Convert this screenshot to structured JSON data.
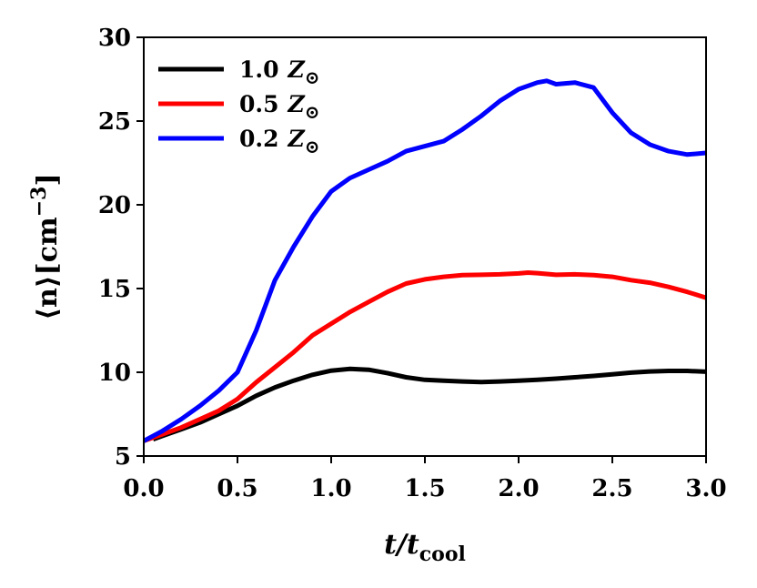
{
  "chart_data": {
    "type": "line",
    "title": "",
    "xlabel": {
      "main": "t/t",
      "sub": "cool"
    },
    "ylabel": {
      "main": "⟨n⟩[cm",
      "sup": "−3",
      "close": "]"
    },
    "xlim": [
      0.0,
      3.0
    ],
    "ylim": [
      5,
      30
    ],
    "xticks": [
      "0.0",
      "0.5",
      "1.0",
      "1.5",
      "2.0",
      "2.5",
      "3.0"
    ],
    "yticks": [
      "5",
      "10",
      "15",
      "20",
      "25",
      "30"
    ],
    "legend_position": "top-left",
    "series": [
      {
        "name": "1.0 Z⊙",
        "label_num": "1.0",
        "label_sym": "Z",
        "label_sub": "⊙",
        "color": "#000000",
        "x": [
          0.05,
          0.1,
          0.2,
          0.3,
          0.4,
          0.5,
          0.6,
          0.7,
          0.8,
          0.9,
          1.0,
          1.1,
          1.2,
          1.3,
          1.4,
          1.5,
          1.6,
          1.7,
          1.8,
          1.9,
          2.0,
          2.1,
          2.2,
          2.3,
          2.4,
          2.5,
          2.6,
          2.7,
          2.8,
          2.9,
          3.0
        ],
        "values": [
          6.0,
          6.2,
          6.6,
          7.0,
          7.5,
          8.0,
          8.6,
          9.1,
          9.5,
          9.85,
          10.1,
          10.2,
          10.15,
          9.95,
          9.7,
          9.55,
          9.5,
          9.45,
          9.42,
          9.45,
          9.5,
          9.55,
          9.62,
          9.7,
          9.78,
          9.88,
          9.98,
          10.05,
          10.08,
          10.08,
          10.03
        ]
      },
      {
        "name": "0.5 Z⊙",
        "label_num": "0.5",
        "label_sym": "Z",
        "label_sub": "⊙",
        "color": "#ff0000",
        "x": [
          0.0,
          0.1,
          0.2,
          0.3,
          0.4,
          0.5,
          0.6,
          0.7,
          0.8,
          0.9,
          1.0,
          1.1,
          1.2,
          1.3,
          1.4,
          1.5,
          1.6,
          1.7,
          1.8,
          1.9,
          2.0,
          2.05,
          2.1,
          2.2,
          2.3,
          2.4,
          2.5,
          2.6,
          2.7,
          2.8,
          2.9,
          3.0
        ],
        "values": [
          5.9,
          6.3,
          6.7,
          7.2,
          7.7,
          8.4,
          9.4,
          10.3,
          11.2,
          12.2,
          12.9,
          13.6,
          14.2,
          14.8,
          15.3,
          15.55,
          15.7,
          15.8,
          15.82,
          15.85,
          15.9,
          15.95,
          15.92,
          15.82,
          15.85,
          15.8,
          15.7,
          15.5,
          15.35,
          15.1,
          14.8,
          14.45
        ]
      },
      {
        "name": "0.2 Z⊙",
        "label_num": "0.2",
        "label_sym": "Z",
        "label_sub": "⊙",
        "color": "#0000ff",
        "x": [
          0.0,
          0.1,
          0.2,
          0.3,
          0.4,
          0.5,
          0.6,
          0.7,
          0.8,
          0.9,
          1.0,
          1.1,
          1.2,
          1.3,
          1.4,
          1.5,
          1.6,
          1.7,
          1.8,
          1.9,
          2.0,
          2.1,
          2.15,
          2.2,
          2.3,
          2.4,
          2.5,
          2.6,
          2.7,
          2.8,
          2.9,
          3.0
        ],
        "values": [
          5.9,
          6.5,
          7.2,
          8.0,
          8.9,
          10.0,
          12.5,
          15.5,
          17.5,
          19.3,
          20.8,
          21.6,
          22.1,
          22.6,
          23.2,
          23.5,
          23.8,
          24.5,
          25.3,
          26.2,
          26.9,
          27.3,
          27.4,
          27.2,
          27.3,
          27.0,
          25.5,
          24.3,
          23.6,
          23.2,
          23.0,
          23.1
        ]
      }
    ]
  }
}
